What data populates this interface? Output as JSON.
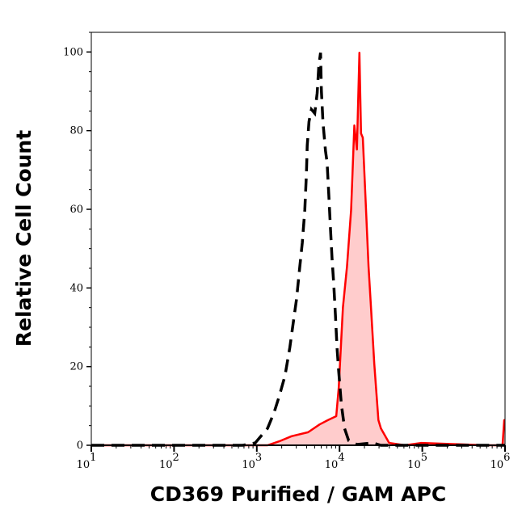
{
  "chart_data": {
    "type": "area",
    "title": "",
    "xlabel": "CD369 Purified / GAM APC",
    "ylabel": "Relative Cell Count",
    "xscale": "log",
    "xlim": [
      10,
      1000000
    ],
    "ylim": [
      0,
      105
    ],
    "grid": false,
    "x_tick_labels": [
      {
        "base": "10",
        "exp": "1",
        "value": 10
      },
      {
        "base": "10",
        "exp": "2",
        "value": 100
      },
      {
        "base": "10",
        "exp": "3",
        "value": 1000
      },
      {
        "base": "10",
        "exp": "4",
        "value": 10000
      },
      {
        "base": "10",
        "exp": "5",
        "value": 100000
      },
      {
        "base": "10",
        "exp": "6",
        "value": 1000000
      }
    ],
    "y_ticks": [
      "0",
      "20",
      "40",
      "60",
      "80",
      "100"
    ],
    "series": [
      {
        "style": "dashed-line",
        "color": "#000000",
        "x": [
          10,
          676,
          955,
          1350,
          1620,
          1870,
          2190,
          2510,
          2750,
          3020,
          3310,
          3550,
          3800,
          3980,
          4070,
          4270,
          4570,
          5010,
          5370,
          5620,
          5890,
          6030,
          6310,
          6760,
          7080,
          7410,
          7760,
          8130,
          8510,
          8910,
          9330,
          9770,
          10500,
          11500,
          12900,
          16200,
          25100,
          31600,
          1000000
        ],
        "y": [
          0,
          0,
          0.6,
          4.3,
          8.4,
          12.5,
          17.7,
          24.9,
          31.0,
          37.2,
          45.4,
          51.5,
          59.8,
          69.0,
          76.2,
          82.3,
          85.4,
          84.4,
          89.5,
          96.7,
          99.8,
          90.3,
          82.1,
          74.9,
          71.9,
          63.7,
          55.4,
          47.2,
          41.1,
          33.1,
          24.8,
          18.7,
          10.5,
          4.3,
          1.2,
          0.2,
          0.6,
          0,
          0
        ]
      },
      {
        "style": "filled",
        "color": "#ff0000",
        "fill": "#ffcccc",
        "x": [
          10,
          676,
          1350,
          1870,
          2630,
          4170,
          5750,
          7240,
          9120,
          9770,
          11000,
          12300,
          13800,
          15100,
          16200,
          17400,
          18200,
          19100,
          20900,
          22400,
          24000,
          26300,
          29500,
          31600,
          39800,
          61700,
          97700,
          589000,
          933000,
          977000,
          1000000
        ],
        "y": [
          0,
          0,
          0,
          1.0,
          2.3,
          3.3,
          5.3,
          6.4,
          7.4,
          14.6,
          35.1,
          45.4,
          59.8,
          81.3,
          75.2,
          99.8,
          79.3,
          78.2,
          59.8,
          45.4,
          35.1,
          20.7,
          6.4,
          4.3,
          0.6,
          0,
          0.6,
          0,
          0,
          6.4,
          6.4
        ]
      }
    ]
  }
}
